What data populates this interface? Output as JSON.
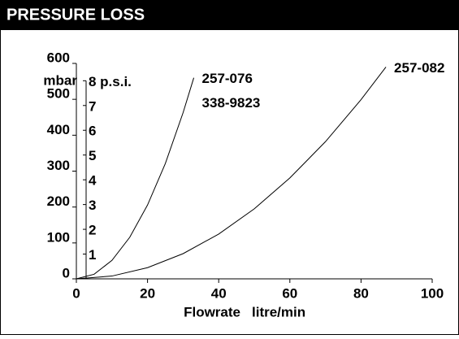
{
  "header": {
    "title": "PRESSURE LOSS"
  },
  "chart_data": {
    "type": "line",
    "xlabel": "Flowrate",
    "xlabel_unit": "litre/min",
    "ylabel": "mbar",
    "xlim": [
      0,
      100
    ],
    "xticks": [
      0,
      20,
      40,
      60,
      80,
      100
    ],
    "ylim": [
      0,
      600
    ],
    "yticks": [
      0,
      100,
      200,
      300,
      400,
      500,
      600
    ],
    "y2lim": [
      0,
      8.7
    ],
    "y2ticks": [
      1,
      2,
      3,
      4,
      5,
      6,
      7,
      {
        "value": 8,
        "label": "8 p.s.i."
      }
    ],
    "color": "#000000",
    "series": [
      {
        "name": "257-076",
        "subname": "338-9823",
        "color": "#000000",
        "x": [
          0,
          5,
          10,
          15,
          20,
          25,
          30,
          33
        ],
        "values": [
          0,
          12.9,
          51.4,
          115.7,
          205.7,
          321,
          463,
          560
        ]
      },
      {
        "name": "257-082",
        "color": "#000000",
        "x": [
          0,
          10,
          20,
          30,
          40,
          50,
          60,
          70,
          80,
          87
        ],
        "values": [
          0,
          7.8,
          31.2,
          70.2,
          124.7,
          195,
          281,
          382,
          499,
          590
        ]
      }
    ]
  }
}
